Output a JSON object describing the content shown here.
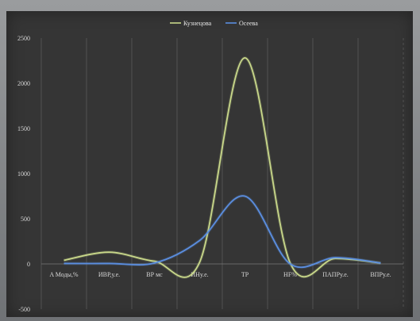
{
  "chart_data": {
    "type": "line",
    "categories": [
      "A Моды,%",
      "ИВР,у.е.",
      "ВР мс",
      "ИНу.е.",
      "ТР",
      "HF%",
      "ПАПРу.е.",
      "ВПРу.е."
    ],
    "series": [
      {
        "name": "Кузнецова",
        "color": "#c9d88a",
        "values": [
          40,
          130,
          30,
          20,
          2280,
          10,
          60,
          10
        ]
      },
      {
        "name": "Осеева",
        "color": "#5b8ee0",
        "values": [
          5,
          5,
          10,
          260,
          750,
          0,
          70,
          10
        ]
      }
    ],
    "yticks": [
      -500,
      0,
      500,
      1000,
      1500,
      2000,
      2500
    ],
    "ylim": [
      -500,
      2500
    ],
    "legend_position": "top",
    "grid": "vertical"
  },
  "colors": {
    "background": "#353535",
    "grid": "#5a5a5a",
    "axis": "#7a7a7a"
  }
}
